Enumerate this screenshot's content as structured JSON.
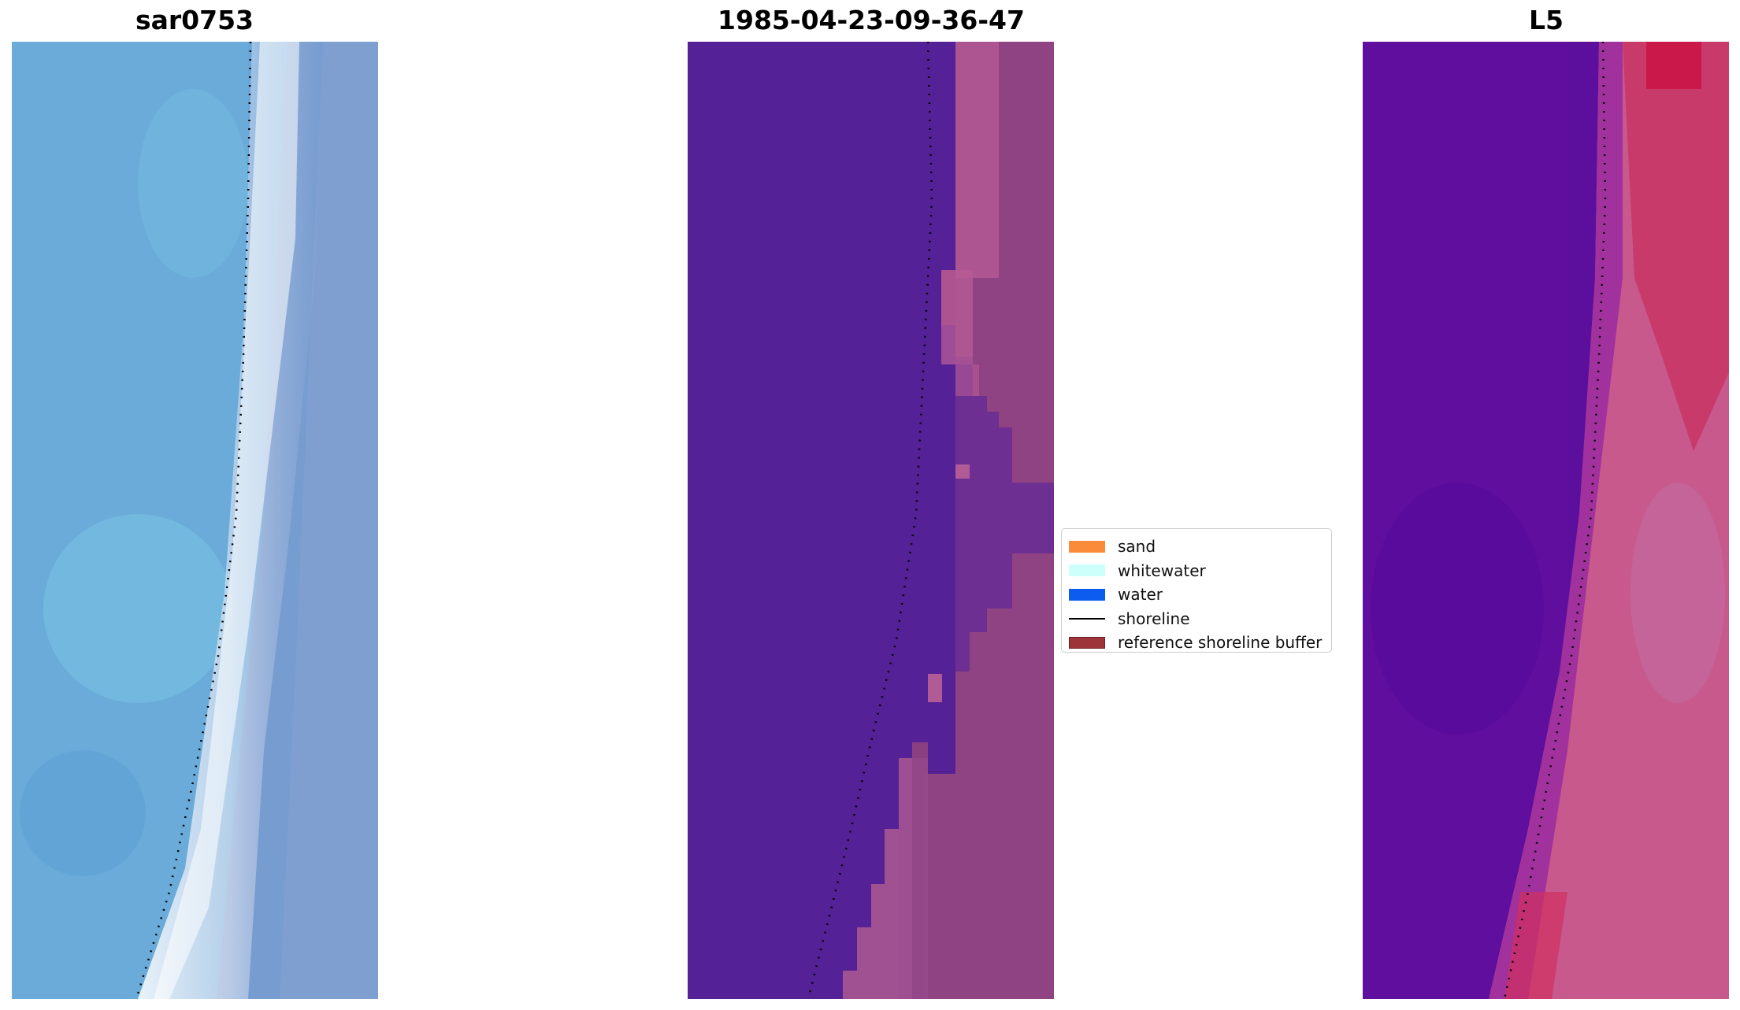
{
  "panels": [
    {
      "title": "sar0753",
      "image": "rgb-satellite-tile"
    },
    {
      "title": "1985-04-23-09-36-47",
      "image": "classified-tile"
    },
    {
      "title": "L5",
      "image": "false-color-tile"
    }
  ],
  "legend": {
    "items": [
      {
        "label": "sand",
        "color": "#f98b3a",
        "kind": "patch"
      },
      {
        "label": "whitewater",
        "color": "#cdfffb",
        "kind": "patch"
      },
      {
        "label": "water",
        "color": "#0d5cf0",
        "kind": "patch"
      },
      {
        "label": "shoreline",
        "color": "#000000",
        "kind": "line"
      },
      {
        "label": "reference shoreline buffer",
        "color": "#9c3439",
        "kind": "patch"
      }
    ]
  },
  "colors": {
    "ocean_blue": "#6aa6d8",
    "classified_water": "#552196",
    "classified_sand": "#8a3f80",
    "false_color_water": "#5c0d9c",
    "false_color_land": "#c14f86"
  }
}
